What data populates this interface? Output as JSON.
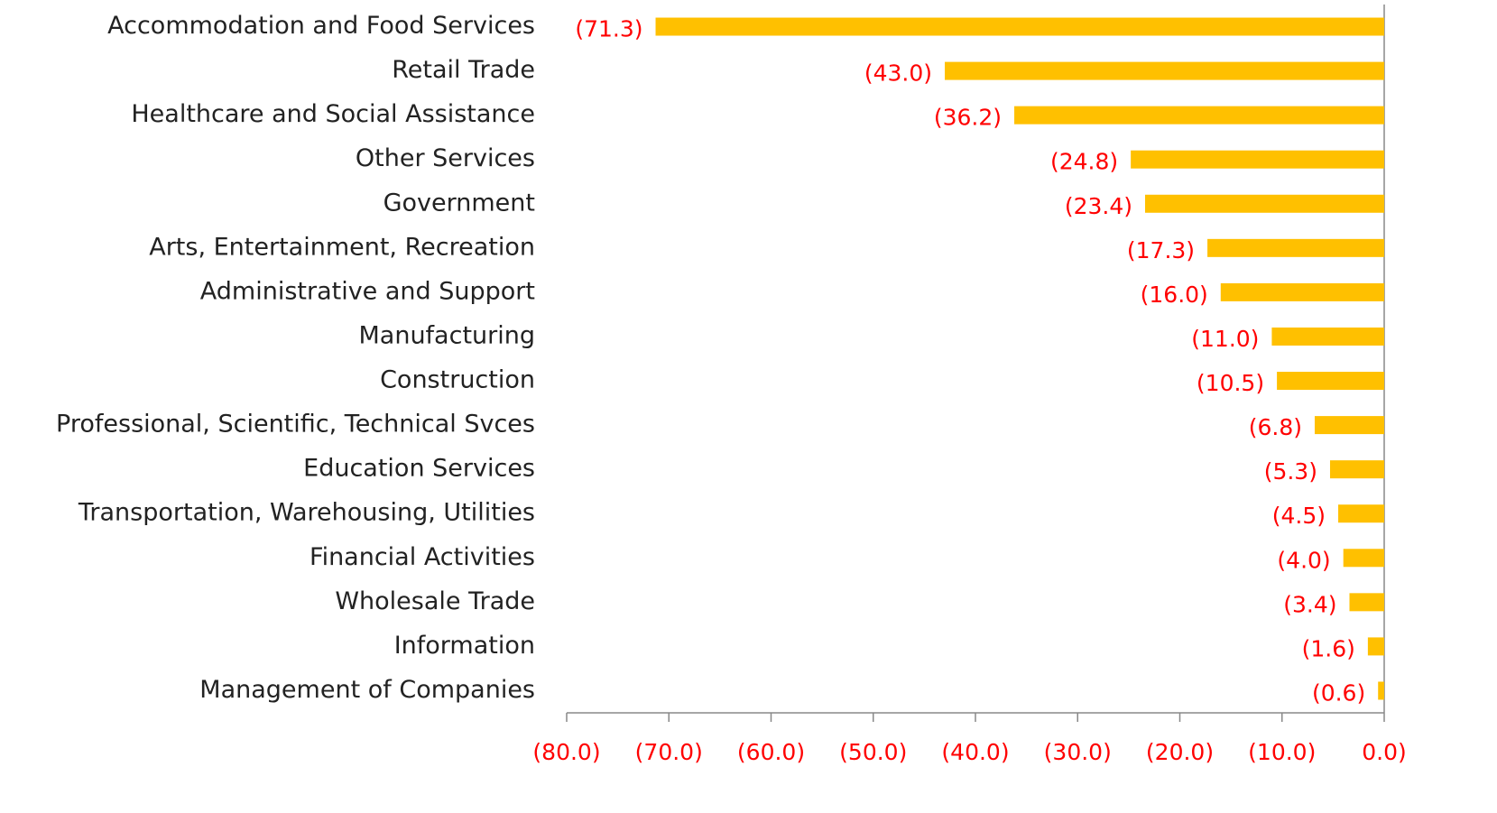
{
  "chart_data": {
    "type": "bar",
    "orientation": "horizontal",
    "categories": [
      "Accommodation and Food Services",
      "Retail Trade",
      "Healthcare and Social Assistance",
      "Other Services",
      "Government",
      "Arts, Entertainment, Recreation",
      "Administrative and Support",
      "Manufacturing",
      "Construction",
      "Professional, Scientific, Technical Svces",
      "Education Services",
      "Transportation, Warehousing, Utilities",
      "Financial Activities",
      "Wholesale Trade",
      "Information",
      "Management of Companies"
    ],
    "values": [
      -71.3,
      -43.0,
      -36.2,
      -24.8,
      -23.4,
      -17.3,
      -16.0,
      -11.0,
      -10.5,
      -6.8,
      -5.3,
      -4.5,
      -4.0,
      -3.4,
      -1.6,
      -0.6
    ],
    "value_labels": [
      "(71.3)",
      "(43.0)",
      "(36.2)",
      "(24.8)",
      "(23.4)",
      "(17.3)",
      "(16.0)",
      "(11.0)",
      "(10.5)",
      "(6.8)",
      "(5.3)",
      "(4.5)",
      "(4.0)",
      "(3.4)",
      "(1.6)",
      "(0.6)"
    ],
    "color": "#ffc000",
    "xlim": [
      -80,
      0
    ],
    "xticks": [
      {
        "value": -80,
        "label": "(80.0)"
      },
      {
        "value": -70,
        "label": "(70.0)"
      },
      {
        "value": -60,
        "label": "(60.0)"
      },
      {
        "value": -50,
        "label": "(50.0)"
      },
      {
        "value": -40,
        "label": "(40.0)"
      },
      {
        "value": -30,
        "label": "(30.0)"
      },
      {
        "value": -20,
        "label": "(20.0)"
      },
      {
        "value": -10,
        "label": "(10.0)"
      },
      {
        "value": 0,
        "label": "0.0)"
      }
    ],
    "grid": false
  }
}
